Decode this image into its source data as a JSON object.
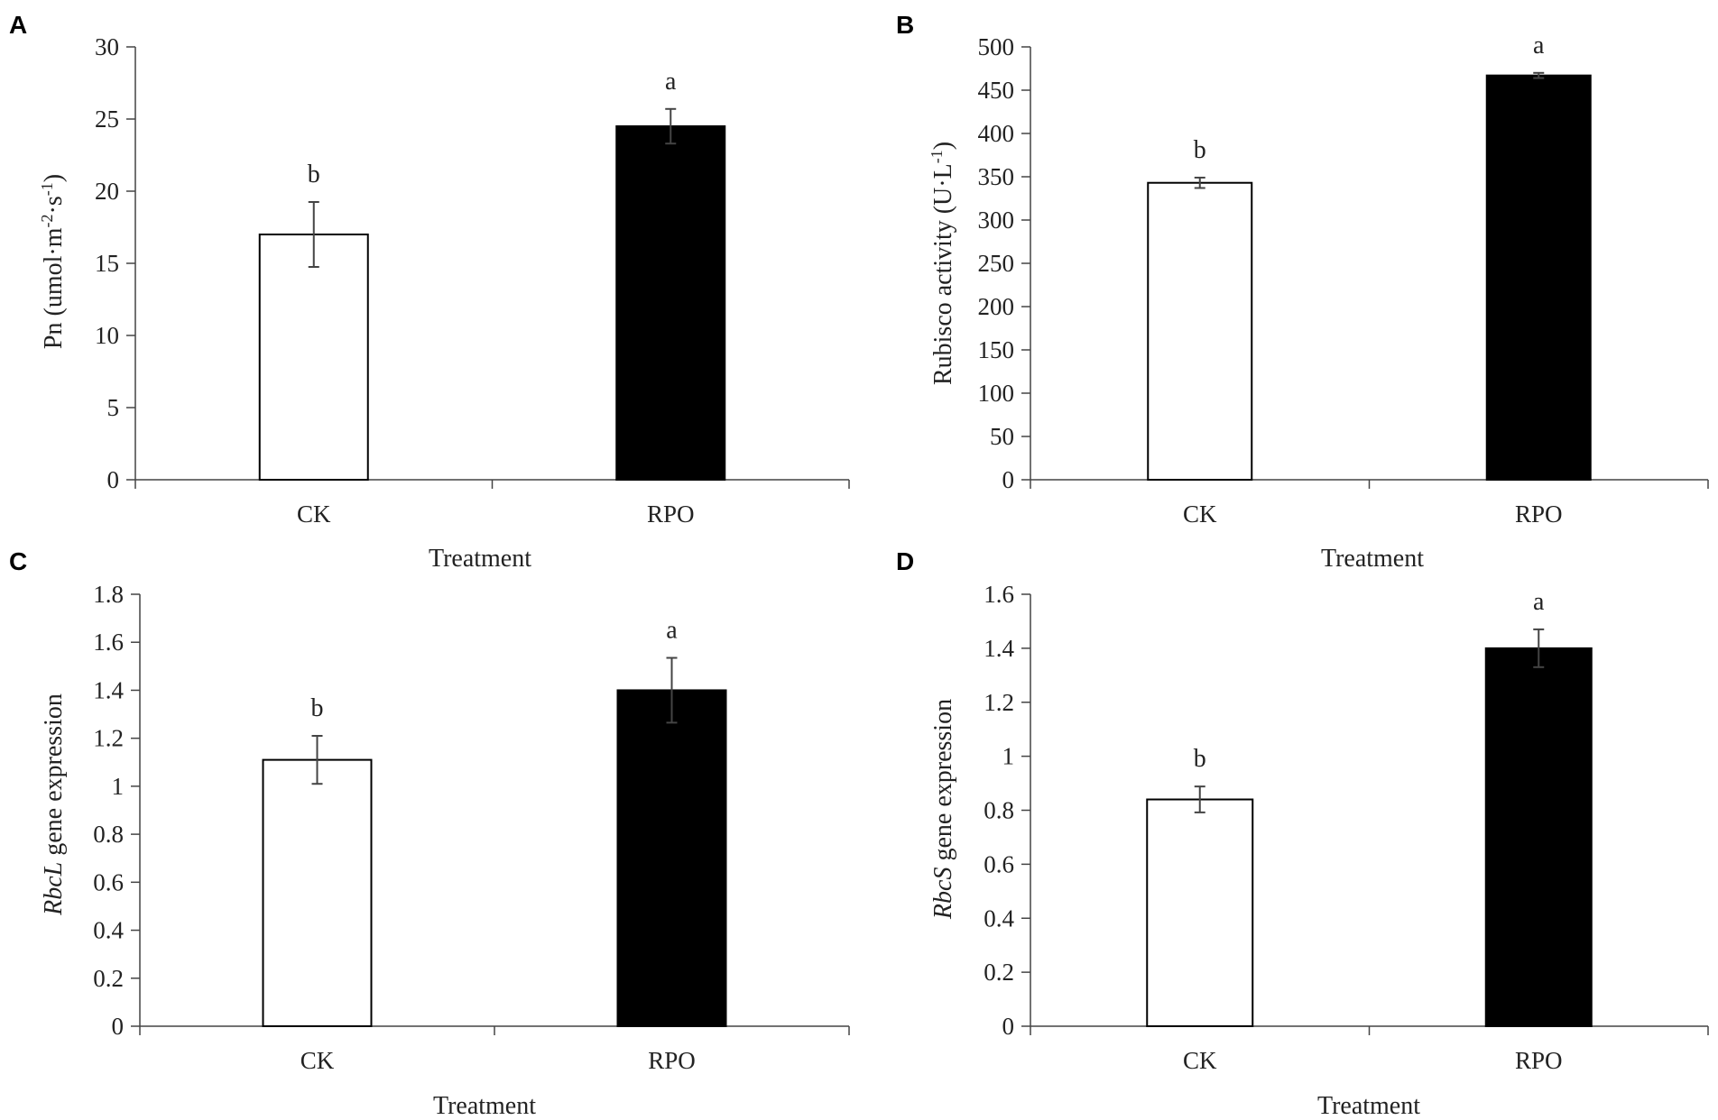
{
  "chart_data": [
    {
      "panel": "A",
      "type": "bar",
      "categories": [
        "CK",
        "RPO"
      ],
      "values": [
        17.0,
        24.5
      ],
      "errors": [
        2.25,
        1.2
      ],
      "significance": [
        "b",
        "a"
      ],
      "colors": [
        "#ffffff",
        "#000000"
      ],
      "ylim": [
        0,
        30
      ],
      "yticks": [
        "0",
        "5",
        "10",
        "15",
        "20",
        "25",
        "30"
      ],
      "xlabel": "Treatment",
      "ylabel": {
        "prefix": "Pn (umol·m",
        "sup1": "-2",
        "mid": "·s",
        "sup2": "-1",
        "suffix": ")"
      },
      "legend": "none",
      "grid": false
    },
    {
      "panel": "B",
      "type": "bar",
      "categories": [
        "CK",
        "RPO"
      ],
      "values": [
        343,
        467
      ],
      "errors": [
        6,
        3
      ],
      "significance": [
        "b",
        "a"
      ],
      "colors": [
        "#ffffff",
        "#000000"
      ],
      "ylim": [
        0,
        500
      ],
      "yticks": [
        "0",
        "50",
        "100",
        "150",
        "200",
        "250",
        "300",
        "350",
        "400",
        "450",
        "500"
      ],
      "xlabel": "Treatment",
      "ylabel": {
        "prefix": "Rubisco activity (U·L",
        "sup1": "-1",
        "suffix": ")"
      },
      "legend": "none",
      "grid": false
    },
    {
      "panel": "C",
      "type": "bar",
      "categories": [
        "CK",
        "RPO"
      ],
      "values": [
        1.11,
        1.4
      ],
      "errors": [
        0.1,
        0.135
      ],
      "significance": [
        "b",
        "a"
      ],
      "colors": [
        "#ffffff",
        "#000000"
      ],
      "ylim": [
        0,
        1.8
      ],
      "yticks": [
        "0",
        "0.2",
        "0.4",
        "0.6",
        "0.8",
        "1",
        "1.2",
        "1.4",
        "1.6",
        "1.8"
      ],
      "xlabel": "Treatment",
      "ylabel": {
        "italic": "RbcL",
        "rest": " gene expression"
      },
      "legend": "none",
      "grid": false
    },
    {
      "panel": "D",
      "type": "bar",
      "categories": [
        "CK",
        "RPO"
      ],
      "values": [
        0.84,
        1.4
      ],
      "errors": [
        0.048,
        0.07
      ],
      "significance": [
        "b",
        "a"
      ],
      "colors": [
        "#ffffff",
        "#000000"
      ],
      "ylim": [
        0,
        1.6
      ],
      "yticks": [
        "0",
        "0.2",
        "0.4",
        "0.6",
        "0.8",
        "1",
        "1.2",
        "1.4",
        "1.6"
      ],
      "xlabel": "Treatment",
      "ylabel": {
        "italic": "RbcS",
        "rest": " gene expression"
      },
      "legend": "none",
      "grid": false
    }
  ]
}
